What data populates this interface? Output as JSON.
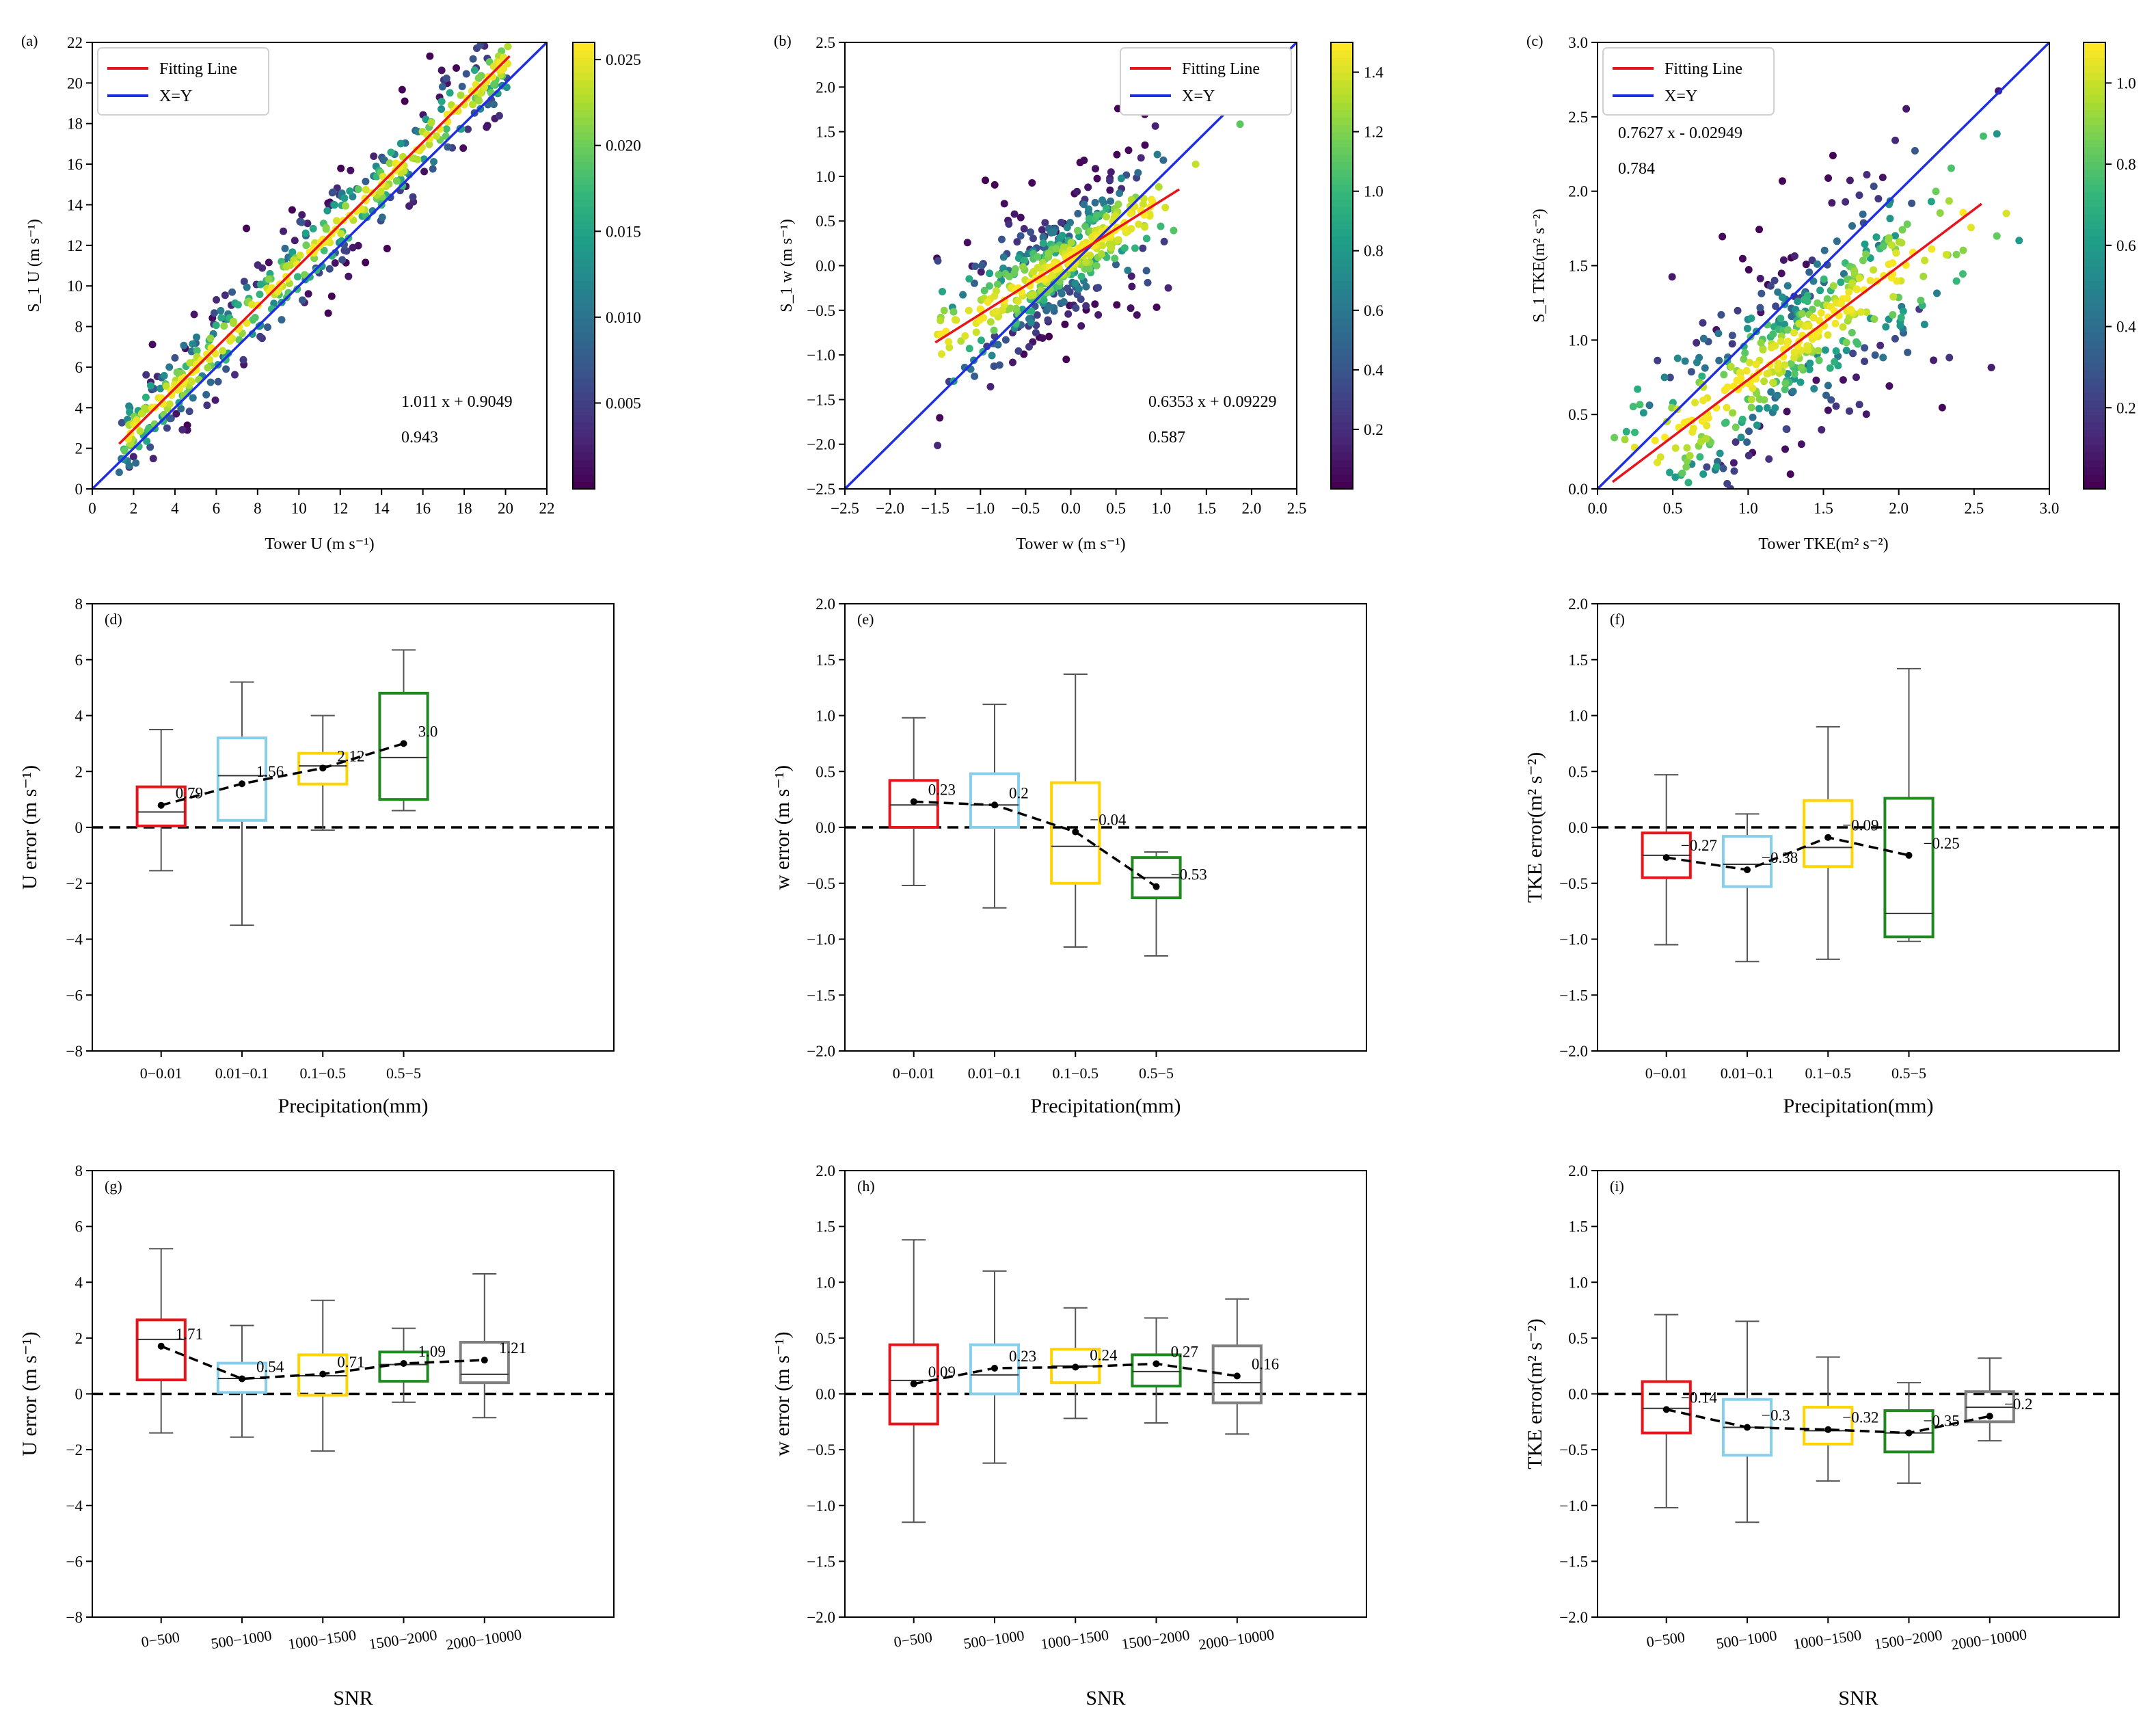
{
  "colors": {
    "fit_line": "#e8141c",
    "xy_line": "#1f2ee0",
    "precip_boxes": [
      "#e8141c",
      "#87ceeb",
      "#ffd400",
      "#1f8a1f"
    ],
    "snr_boxes": [
      "#e8141c",
      "#87ceeb",
      "#ffd400",
      "#1f8a1f",
      "#808080"
    ],
    "colormap": "viridis"
  },
  "chart_data": [
    {
      "panel": "(a)",
      "type": "scatter",
      "xlabel": "Tower U (m s⁻¹)",
      "ylabel": "S_1 U (m s⁻¹)",
      "xlim": [
        0,
        22
      ],
      "ylim": [
        0,
        22
      ],
      "xticks": [
        0,
        2,
        4,
        6,
        8,
        10,
        12,
        14,
        16,
        18,
        20,
        22
      ],
      "yticks": [
        0,
        2,
        4,
        6,
        8,
        10,
        12,
        14,
        16,
        18,
        20,
        22
      ],
      "legend": [
        "Fitting Line",
        "X=Y"
      ],
      "legend_loc": "upper-left",
      "fit": {
        "slope": 1.011,
        "intercept": 0.9049,
        "x_range": [
          1.3,
          20.2
        ]
      },
      "identity": [
        0,
        22
      ],
      "annotation": [
        "1.011 x + 0.9049",
        "0.943"
      ],
      "colorbar": {
        "min": 0,
        "max": 0.026,
        "ticks": [
          0.005,
          0.01,
          0.015,
          0.02,
          0.025
        ],
        "tick_labels": [
          "0.005",
          "0.010",
          "0.015",
          "0.020",
          "0.025"
        ]
      },
      "points_note": "approx. 600 points clustered along fitting line, density-coloured",
      "scatter_spread": 1.4
    },
    {
      "panel": "(b)",
      "type": "scatter",
      "xlabel": "Tower w (m s⁻¹)",
      "ylabel": "S_1 w (m s⁻¹)",
      "xlim": [
        -2.5,
        2.5
      ],
      "ylim": [
        -2.5,
        2.5
      ],
      "xticks": [
        -2.5,
        -2.0,
        -1.5,
        -1.0,
        -0.5,
        0.0,
        0.5,
        1.0,
        1.5,
        2.0,
        2.5
      ],
      "yticks": [
        -2.5,
        -2.0,
        -1.5,
        -1.0,
        -0.5,
        0.0,
        0.5,
        1.0,
        1.5,
        2.0,
        2.5
      ],
      "legend": [
        "Fitting Line",
        "X=Y"
      ],
      "legend_loc": "upper-right",
      "fit": {
        "slope": 0.6353,
        "intercept": 0.09229,
        "x_range": [
          -1.5,
          1.2
        ]
      },
      "identity": [
        -2.5,
        2.5
      ],
      "annotation": [
        "0.6353 x + 0.09229",
        "0.587"
      ],
      "colorbar": {
        "min": 0,
        "max": 1.5,
        "ticks": [
          0.2,
          0.4,
          0.6,
          0.8,
          1.0,
          1.2,
          1.4
        ],
        "tick_labels": [
          "0.2",
          "0.4",
          "0.6",
          "0.8",
          "1.0",
          "1.2",
          "1.4"
        ]
      },
      "scatter_spread": 0.35
    },
    {
      "panel": "(c)",
      "type": "scatter",
      "xlabel": "Tower TKE(m² s⁻²)",
      "ylabel": "S_1 TKE(m² s⁻²)",
      "xlim": [
        0,
        3.0
      ],
      "ylim": [
        0,
        3.0
      ],
      "xticks": [
        0.0,
        0.5,
        1.0,
        1.5,
        2.0,
        2.5,
        3.0
      ],
      "yticks": [
        0.0,
        0.5,
        1.0,
        1.5,
        2.0,
        2.5,
        3.0
      ],
      "legend": [
        "Fitting Line",
        "X=Y"
      ],
      "legend_loc": "upper-left",
      "fit": {
        "slope": 0.7627,
        "intercept": -0.02949,
        "x_range": [
          0.1,
          2.55
        ]
      },
      "identity": [
        0,
        3.0
      ],
      "annotation": [
        "0.7627 x - 0.02949",
        "0.784"
      ],
      "colorbar": {
        "min": 0,
        "max": 1.1,
        "ticks": [
          0.2,
          0.4,
          0.6,
          0.8,
          1.0
        ],
        "tick_labels": [
          "0.2",
          "0.4",
          "0.6",
          "0.8",
          "1.0"
        ]
      },
      "scatter_spread": 0.35
    },
    {
      "panel": "(d)",
      "type": "box",
      "xlabel": "Precipitation(mm)",
      "ylabel": "U error (m s⁻¹)",
      "ylim": [
        -8,
        8
      ],
      "yticks": [
        -8,
        -6,
        -4,
        -2,
        0,
        2,
        4,
        6,
        8
      ],
      "categories": [
        "0−0.01",
        "0.01−0.1",
        "0.1−0.5",
        "0.5−5"
      ],
      "boxes": [
        {
          "whislo": -1.55,
          "q1": 0.05,
          "med": 0.55,
          "q3": 1.45,
          "whishi": 3.5
        },
        {
          "whislo": -3.5,
          "q1": 0.25,
          "med": 1.85,
          "q3": 3.2,
          "whishi": 5.2
        },
        {
          "whislo": -0.1,
          "q1": 1.55,
          "med": 2.2,
          "q3": 2.65,
          "whishi": 4.0
        },
        {
          "whislo": 0.6,
          "q1": 1.0,
          "med": 2.5,
          "q3": 4.8,
          "whishi": 6.35
        }
      ],
      "means": [
        0.79,
        1.56,
        2.12,
        3.0
      ],
      "mean_labels": [
        "0.79",
        "1.56",
        "2.12",
        "3.0"
      ]
    },
    {
      "panel": "(e)",
      "type": "box",
      "xlabel": "Precipitation(mm)",
      "ylabel": "w error (m s⁻¹)",
      "ylim": [
        -2.0,
        2.0
      ],
      "yticks": [
        -2.0,
        -1.5,
        -1.0,
        -0.5,
        0.0,
        0.5,
        1.0,
        1.5,
        2.0
      ],
      "categories": [
        "0−0.01",
        "0.01−0.1",
        "0.1−0.5",
        "0.5−5"
      ],
      "boxes": [
        {
          "whislo": -0.52,
          "q1": 0.0,
          "med": 0.2,
          "q3": 0.42,
          "whishi": 0.98
        },
        {
          "whislo": -0.72,
          "q1": 0.0,
          "med": 0.2,
          "q3": 0.48,
          "whishi": 1.1
        },
        {
          "whislo": -1.07,
          "q1": -0.5,
          "med": -0.17,
          "q3": 0.4,
          "whishi": 1.37
        },
        {
          "whislo": -1.15,
          "q1": -0.63,
          "med": -0.45,
          "q3": -0.27,
          "whishi": -0.22
        }
      ],
      "means": [
        0.23,
        0.2,
        -0.04,
        -0.53
      ],
      "mean_labels": [
        "0.23",
        "0.2",
        "−0.04",
        "−0.53"
      ]
    },
    {
      "panel": "(f)",
      "type": "box",
      "xlabel": "Precipitation(mm)",
      "ylabel": "TKE error(m² s⁻²)",
      "ylim": [
        -2.0,
        2.0
      ],
      "yticks": [
        -2.0,
        -1.5,
        -1.0,
        -0.5,
        0.0,
        0.5,
        1.0,
        1.5,
        2.0
      ],
      "categories": [
        "0−0.01",
        "0.01−0.1",
        "0.1−0.5",
        "0.5−5"
      ],
      "boxes": [
        {
          "whislo": -1.05,
          "q1": -0.45,
          "med": -0.25,
          "q3": -0.05,
          "whishi": 0.47
        },
        {
          "whislo": -1.2,
          "q1": -0.53,
          "med": -0.33,
          "q3": -0.08,
          "whishi": 0.12
        },
        {
          "whislo": -1.18,
          "q1": -0.35,
          "med": -0.18,
          "q3": 0.24,
          "whishi": 0.9
        },
        {
          "whislo": -1.02,
          "q1": -0.98,
          "med": -0.77,
          "q3": 0.26,
          "whishi": 1.42
        }
      ],
      "means": [
        -0.27,
        -0.38,
        -0.09,
        -0.25
      ],
      "mean_labels": [
        "−0.27",
        "−0.38",
        "−0.09",
        "−0.25"
      ]
    },
    {
      "panel": "(g)",
      "type": "box",
      "xlabel": "SNR",
      "ylabel": "U error (m s⁻¹)",
      "ylim": [
        -8,
        8
      ],
      "yticks": [
        -8,
        -6,
        -4,
        -2,
        0,
        2,
        4,
        6,
        8
      ],
      "categories": [
        "0−500",
        "500−1000",
        "1000−1500",
        "1500−2000",
        "2000−10000"
      ],
      "boxes": [
        {
          "whislo": -1.4,
          "q1": 0.5,
          "med": 1.95,
          "q3": 2.65,
          "whishi": 5.2
        },
        {
          "whislo": -1.55,
          "q1": 0.05,
          "med": 0.55,
          "q3": 1.1,
          "whishi": 2.45
        },
        {
          "whislo": -2.05,
          "q1": -0.05,
          "med": 0.65,
          "q3": 1.4,
          "whishi": 3.35
        },
        {
          "whislo": -0.3,
          "q1": 0.45,
          "med": 1.05,
          "q3": 1.5,
          "whishi": 2.35
        },
        {
          "whislo": -0.85,
          "q1": 0.4,
          "med": 0.7,
          "q3": 1.85,
          "whishi": 4.3
        }
      ],
      "means": [
        1.71,
        0.54,
        0.71,
        1.09,
        1.21
      ],
      "mean_labels": [
        "1.71",
        "0.54",
        "0.71",
        "1.09",
        "1.21"
      ]
    },
    {
      "panel": "(h)",
      "type": "box",
      "xlabel": "SNR",
      "ylabel": "w error (m s⁻¹)",
      "ylim": [
        -2.0,
        2.0
      ],
      "yticks": [
        -2.0,
        -1.5,
        -1.0,
        -0.5,
        0.0,
        0.5,
        1.0,
        1.5,
        2.0
      ],
      "categories": [
        "0−500",
        "500−1000",
        "1000−1500",
        "1500−2000",
        "2000−10000"
      ],
      "boxes": [
        {
          "whislo": -1.15,
          "q1": -0.27,
          "med": 0.12,
          "q3": 0.44,
          "whishi": 1.38
        },
        {
          "whislo": -0.62,
          "q1": 0.0,
          "med": 0.17,
          "q3": 0.44,
          "whishi": 1.1
        },
        {
          "whislo": -0.22,
          "q1": 0.1,
          "med": 0.25,
          "q3": 0.4,
          "whishi": 0.77
        },
        {
          "whislo": -0.26,
          "q1": 0.07,
          "med": 0.2,
          "q3": 0.35,
          "whishi": 0.68
        },
        {
          "whislo": -0.36,
          "q1": -0.08,
          "med": 0.1,
          "q3": 0.43,
          "whishi": 0.85
        }
      ],
      "means": [
        0.09,
        0.23,
        0.24,
        0.27,
        0.16
      ],
      "mean_labels": [
        "0.09",
        "0.23",
        "0.24",
        "0.27",
        "0.16"
      ]
    },
    {
      "panel": "(i)",
      "type": "box",
      "xlabel": "SNR",
      "ylabel": "TKE error(m² s⁻²)",
      "ylim": [
        -2.0,
        2.0
      ],
      "yticks": [
        -2.0,
        -1.5,
        -1.0,
        -0.5,
        0.0,
        0.5,
        1.0,
        1.5,
        2.0
      ],
      "categories": [
        "0−500",
        "500−1000",
        "1000−1500",
        "1500−2000",
        "2000−10000"
      ],
      "boxes": [
        {
          "whislo": -1.02,
          "q1": -0.35,
          "med": -0.13,
          "q3": 0.11,
          "whishi": 0.71
        },
        {
          "whislo": -1.15,
          "q1": -0.55,
          "med": -0.3,
          "q3": -0.05,
          "whishi": 0.65
        },
        {
          "whislo": -0.78,
          "q1": -0.45,
          "med": -0.33,
          "q3": -0.12,
          "whishi": 0.33
        },
        {
          "whislo": -0.8,
          "q1": -0.52,
          "med": -0.35,
          "q3": -0.15,
          "whishi": 0.1
        },
        {
          "whislo": -0.42,
          "q1": -0.25,
          "med": -0.12,
          "q3": 0.02,
          "whishi": 0.32
        }
      ],
      "means": [
        -0.14,
        -0.3,
        -0.32,
        -0.35,
        -0.2
      ],
      "mean_labels": [
        "−0.14",
        "−0.3",
        "−0.32",
        "−0.35",
        "−0.2"
      ]
    }
  ]
}
